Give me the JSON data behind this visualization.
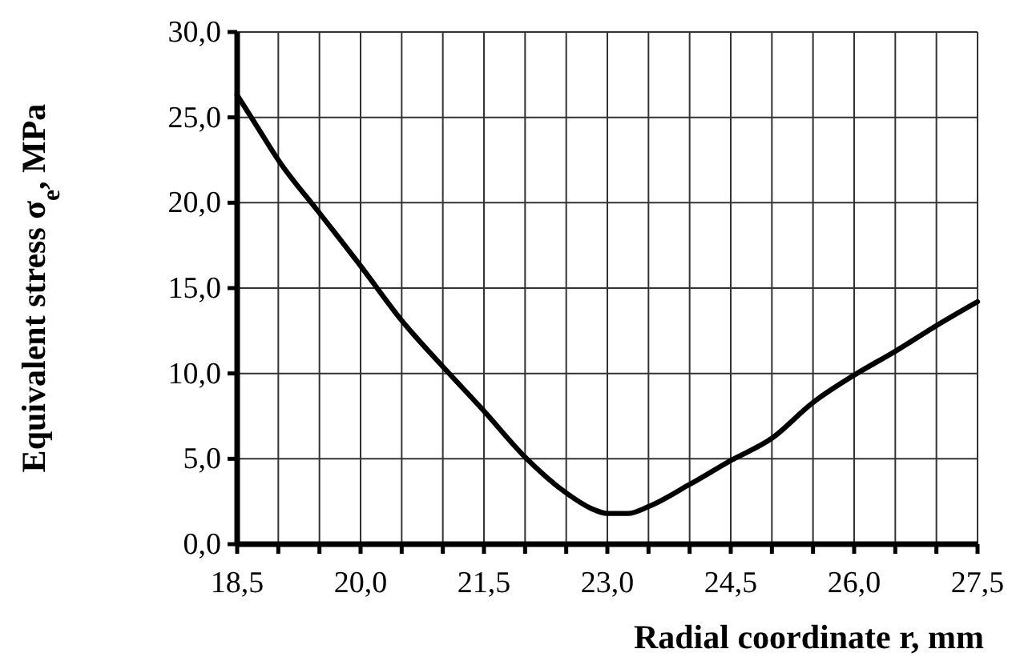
{
  "chart_data": {
    "type": "line",
    "xlabel": "Radial coordinate r, mm",
    "ylabel": "Equivalent stress σ$_{e}$, MPa",
    "xlim": [
      18.5,
      27.5
    ],
    "ylim": [
      0,
      30
    ],
    "xticks": [
      {
        "value": 18.5,
        "label": "18,5"
      },
      {
        "value": 19,
        "label": null
      },
      {
        "value": 19.5,
        "label": null
      },
      {
        "value": 20,
        "label": "20,0"
      },
      {
        "value": 20.5,
        "label": null
      },
      {
        "value": 21,
        "label": null
      },
      {
        "value": 21.5,
        "label": "21,5"
      },
      {
        "value": 22,
        "label": null
      },
      {
        "value": 22.5,
        "label": null
      },
      {
        "value": 23,
        "label": "23,0"
      },
      {
        "value": 23.5,
        "label": null
      },
      {
        "value": 24,
        "label": null
      },
      {
        "value": 24.5,
        "label": "24,5"
      },
      {
        "value": 25,
        "label": null
      },
      {
        "value": 25.5,
        "label": null
      },
      {
        "value": 26,
        "label": "26,0"
      },
      {
        "value": 26.5,
        "label": null
      },
      {
        "value": 27,
        "label": null
      },
      {
        "value": 27.5,
        "label": "27,5"
      }
    ],
    "yticks": [
      {
        "value": 0,
        "label": "0,0"
      },
      {
        "value": 5,
        "label": "5,0"
      },
      {
        "value": 10,
        "label": "10,0"
      },
      {
        "value": 15,
        "label": "15,0"
      },
      {
        "value": 20,
        "label": "20,0"
      },
      {
        "value": 25,
        "label": "25,0"
      },
      {
        "value": 30,
        "label": "30,0"
      }
    ],
    "grid": true,
    "marker": "none",
    "line_style": "solid",
    "x": [
      18.5,
      18.75,
      19,
      19.5,
      20,
      20.5,
      21,
      21.5,
      22,
      22.5,
      22.8,
      23,
      23.25,
      23.5,
      24,
      24.5,
      25,
      25.5,
      26,
      26.5,
      27,
      27.5
    ],
    "series": [
      {
        "color": "#000000",
        "values": [
          26.3,
          24.4,
          22.5,
          19.4,
          16.3,
          13.1,
          10.4,
          7.8,
          5.1,
          3.0,
          2.1,
          1.8,
          1.8,
          2.2,
          3.5,
          4.9,
          6.2,
          8.3,
          9.9,
          11.3,
          12.8,
          14.2
        ]
      }
    ]
  }
}
